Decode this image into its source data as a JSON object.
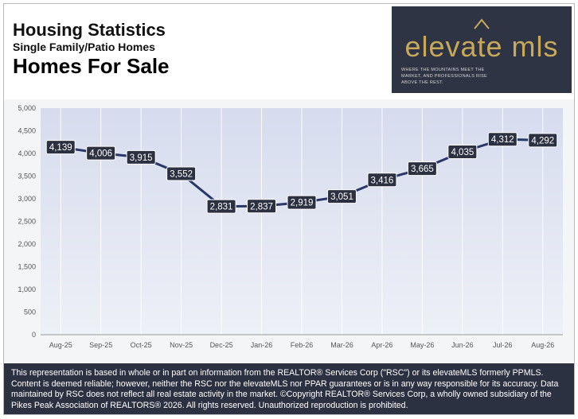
{
  "header": {
    "title": "Housing Statistics",
    "subtitle": "Single Family/Patio Homes",
    "metric": "Homes For Sale"
  },
  "logo": {
    "wordmark": "elevate mls",
    "tagline": "WHERE THE MOUNTAINS MEET THE MARKET, AND PROFESSIONALS RISE ABOVE THE REST.",
    "color": "#c8a95a",
    "background": "#2f3445"
  },
  "chart_data": {
    "type": "line",
    "categories": [
      "Aug-25",
      "Sep-25",
      "Oct-25",
      "Nov-25",
      "Dec-25",
      "Jan-26",
      "Feb-26",
      "Mar-26",
      "Apr-26",
      "May-26",
      "Jun-26",
      "Jul-26",
      "Aug-26"
    ],
    "series": [
      {
        "values": [
          4139,
          4006,
          3915,
          3552,
          2831,
          2837,
          2919,
          3051,
          3416,
          3665,
          4035,
          4312,
          4292
        ],
        "labels": [
          "4,139",
          "4,006",
          "3,915",
          "3,552",
          "2,831",
          "2,837",
          "2,919",
          "3,051",
          "3,416",
          "3,665",
          "4,035",
          "4,312",
          "4,292"
        ],
        "color": "#2c3568"
      }
    ],
    "y_ticks": [
      0,
      500,
      1000,
      1500,
      2000,
      2500,
      3000,
      3500,
      4000,
      4500,
      5000
    ],
    "y_tick_labels": [
      "0",
      "500",
      "1,000",
      "1,500",
      "2,000",
      "2,500",
      "3,000",
      "3,500",
      "4,000",
      "4,500",
      "5,000"
    ],
    "ylim": [
      0,
      5000
    ],
    "grid": "vertical",
    "legend": "none",
    "data_labels": true,
    "plot_fill": "#dfe4f2",
    "label_fill": "#2c3142"
  },
  "footer": {
    "disclaimer": "This representation is based in whole or in part on information from the REALTOR® Services Corp (\"RSC\") or its elevateMLS formerly PPMLS. Content is deemed reliable; however, neither the RSC nor the elevateMLS nor PPAR guarantees or is in any way responsible for its accuracy. Data maintained by RSC does not reflect all real estate activity in the market.  ©Copyright REALTOR® Services Corp, a wholly owned subsidiary of the Pikes Peak Association of REALTORS® 2026. All rights reserved. Unauthorized reproduction is prohibited."
  }
}
